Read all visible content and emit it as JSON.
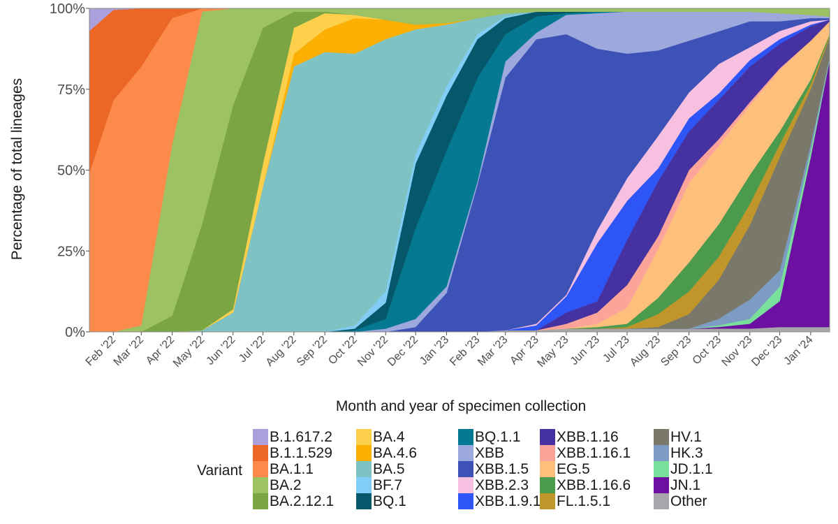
{
  "chart_data": {
    "type": "area",
    "stacked": true,
    "normalized_percent": true,
    "xlabel": "Month and year of specimen collection",
    "ylabel": "Percentage of total lineages",
    "ylim": [
      0,
      100
    ],
    "y_ticks": [
      "0%",
      "25%",
      "50%",
      "75%",
      "100%"
    ],
    "x_ticks": [
      {
        "date": "2022-02-01",
        "label": "Feb '22"
      },
      {
        "date": "2022-03-01",
        "label": "Mar '22"
      },
      {
        "date": "2022-04-01",
        "label": "Apr '22"
      },
      {
        "date": "2022-05-01",
        "label": "May '22"
      },
      {
        "date": "2022-06-01",
        "label": "Jun '22"
      },
      {
        "date": "2022-07-01",
        "label": "Jul '22"
      },
      {
        "date": "2022-08-01",
        "label": "Aug '22"
      },
      {
        "date": "2022-09-01",
        "label": "Sep '22"
      },
      {
        "date": "2022-10-01",
        "label": "Oct '22"
      },
      {
        "date": "2022-11-01",
        "label": "Nov '22"
      },
      {
        "date": "2022-12-01",
        "label": "Dec '22"
      },
      {
        "date": "2023-01-01",
        "label": "Jan '23"
      },
      {
        "date": "2023-02-01",
        "label": "Feb '23"
      },
      {
        "date": "2023-03-01",
        "label": "Mar '23"
      },
      {
        "date": "2023-04-01",
        "label": "Apr '23"
      },
      {
        "date": "2023-05-01",
        "label": "May '23"
      },
      {
        "date": "2023-06-01",
        "label": "Jun '23"
      },
      {
        "date": "2023-07-01",
        "label": "Jul '23"
      },
      {
        "date": "2023-08-01",
        "label": "Aug '23"
      },
      {
        "date": "2023-09-01",
        "label": "Sep '23"
      },
      {
        "date": "2023-10-01",
        "label": "Oct '23"
      },
      {
        "date": "2023-11-01",
        "label": "Nov '23"
      },
      {
        "date": "2023-12-01",
        "label": "Dec '23"
      },
      {
        "date": "2024-01-01",
        "label": "Jan '24"
      }
    ],
    "xlim": [
      "2022-01-08",
      "2024-01-20"
    ],
    "x": [
      "2022-01-08",
      "2022-02-01",
      "2022-03-01",
      "2022-04-01",
      "2022-05-01",
      "2022-06-01",
      "2022-07-01",
      "2022-08-01",
      "2022-09-01",
      "2022-10-01",
      "2022-11-01",
      "2022-12-01",
      "2023-01-01",
      "2023-02-01",
      "2023-03-01",
      "2023-04-01",
      "2023-05-01",
      "2023-06-01",
      "2023-07-01",
      "2023-08-01",
      "2023-09-01",
      "2023-10-01",
      "2023-11-01",
      "2023-12-01",
      "2024-01-01",
      "2024-01-20"
    ],
    "legend_title": "Variant",
    "legend_position": "bottom",
    "series": [
      {
        "name": "B.1.617.2",
        "color": "#ab9fdc",
        "values": [
          7,
          0.5,
          0,
          0,
          0,
          0,
          0,
          0,
          0,
          0,
          0,
          0,
          0,
          0,
          0,
          0,
          0,
          0,
          0,
          0,
          0,
          0,
          0,
          0,
          0,
          0
        ]
      },
      {
        "name": "B.1.1.529",
        "color": "#ec6726",
        "values": [
          44,
          28,
          18,
          3,
          0,
          0,
          0,
          0,
          0,
          0,
          0,
          0,
          0,
          0,
          0,
          0,
          0,
          0,
          0,
          0,
          0,
          0,
          0,
          0,
          0,
          0
        ]
      },
      {
        "name": "BA.1.1",
        "color": "#fc8a4a",
        "values": [
          49,
          71.5,
          80,
          39,
          1,
          0,
          0,
          0,
          0,
          0,
          0,
          0,
          0,
          0,
          0,
          0,
          0,
          0,
          0,
          0,
          0,
          0,
          0,
          0,
          0,
          0
        ]
      },
      {
        "name": "BA.2",
        "color": "#9cc264",
        "values": [
          0,
          0,
          2,
          53,
          66,
          30,
          6,
          1,
          1,
          2,
          3.5,
          5,
          4.5,
          3,
          1.5,
          1,
          1,
          1,
          1,
          1,
          1,
          1,
          1,
          1.5,
          2,
          2.5
        ]
      },
      {
        "name": "BA.2.12.1",
        "color": "#7aa542",
        "values": [
          0,
          0,
          0,
          5,
          33,
          63,
          42,
          5,
          0.5,
          0,
          0,
          0,
          0,
          0,
          0,
          0,
          0,
          0,
          0,
          0,
          0,
          0,
          0,
          0,
          0,
          0
        ]
      },
      {
        "name": "BA.4",
        "color": "#fdd04c",
        "values": [
          0,
          0,
          0,
          0,
          0,
          1,
          7,
          8,
          5,
          1,
          0,
          0,
          0,
          0,
          0,
          0,
          0,
          0,
          0,
          0,
          0,
          0,
          0,
          0,
          0,
          0
        ]
      },
      {
        "name": "BA.4.6",
        "color": "#fdb004",
        "values": [
          0,
          0,
          0,
          0,
          0,
          0,
          0,
          4,
          7,
          11,
          6,
          1.5,
          0.5,
          0,
          0,
          0,
          0,
          0,
          0,
          0,
          0,
          0,
          0,
          0,
          0,
          0
        ]
      },
      {
        "name": "BA.5",
        "color": "#7ec2c4",
        "values": [
          0,
          0,
          0,
          0,
          0.5,
          6,
          45,
          82,
          86.5,
          84,
          78,
          38.5,
          19,
          5,
          1,
          0,
          0,
          0,
          0,
          0,
          0,
          0,
          0,
          0,
          0,
          0
        ]
      },
      {
        "name": "BF.7",
        "color": "#82cdf5",
        "values": [
          0,
          0,
          0,
          0,
          0,
          0,
          0,
          0,
          0,
          1,
          3.5,
          3,
          3,
          1.5,
          0.5,
          0,
          0,
          0,
          0,
          0,
          0,
          0,
          0,
          0,
          0,
          0
        ]
      },
      {
        "name": "BQ.1",
        "color": "#04586a",
        "values": [
          0,
          0,
          0,
          0,
          0,
          0,
          0,
          0,
          0,
          0.5,
          5,
          20,
          17,
          12,
          5,
          1.5,
          0.5,
          0,
          0,
          0,
          0,
          0,
          0,
          0,
          0,
          0
        ]
      },
      {
        "name": "BQ.1.1",
        "color": "#057892",
        "values": [
          0,
          0,
          0,
          0,
          0,
          0,
          0,
          0,
          0,
          0.5,
          3,
          28,
          42,
          32,
          8.5,
          5,
          0.5,
          0.5,
          0,
          0,
          0,
          0,
          0,
          0,
          0,
          0
        ]
      },
      {
        "name": "XBB",
        "color": "#9da9dc",
        "values": [
          0,
          0,
          0,
          0,
          0,
          0,
          0,
          0,
          0,
          0,
          1,
          2.5,
          2,
          1,
          5,
          2,
          6,
          11,
          13,
          12,
          9,
          6,
          3,
          2.5,
          1,
          0.5
        ]
      },
      {
        "name": "XBB.1.5",
        "color": "#3d52b7",
        "values": [
          0,
          0,
          0,
          0,
          0,
          0,
          0,
          0,
          0,
          0,
          0,
          1.5,
          12,
          45.5,
          78.5,
          87.5,
          81,
          56.5,
          38.5,
          26.5,
          16,
          10,
          8,
          3,
          1,
          0.5
        ]
      },
      {
        "name": "XBB.2.3",
        "color": "#f8c0e0",
        "values": [
          0,
          0,
          0,
          0,
          0,
          0,
          0,
          0,
          0,
          0,
          0,
          0,
          0,
          0,
          0,
          0.5,
          0.5,
          4,
          7,
          10,
          8,
          9,
          4,
          2.5,
          1,
          0
        ]
      },
      {
        "name": "XBB.1.9.1",
        "color": "#2e55f5",
        "values": [
          0,
          0,
          0,
          0,
          0,
          0,
          0,
          0,
          0,
          0,
          0,
          0,
          0,
          0,
          0,
          1.5,
          5,
          18,
          12,
          4,
          4,
          2,
          2,
          1.5,
          0.5,
          0
        ]
      },
      {
        "name": "XBB.1.16",
        "color": "#4531a0",
        "values": [
          0,
          0,
          0,
          0,
          0,
          0,
          0,
          0,
          0,
          0,
          0,
          0,
          0,
          0,
          0,
          0,
          3.5,
          3.5,
          14,
          17,
          12,
          12,
          11,
          7.5,
          4.5,
          0.5
        ]
      },
      {
        "name": "XBB.1.16.1",
        "color": "#fca49a",
        "values": [
          0,
          0,
          0,
          0,
          0,
          0,
          0,
          0,
          0,
          0,
          0,
          0,
          0,
          0,
          0,
          0,
          1.5,
          3.5,
          7,
          4,
          4,
          2,
          1,
          0.5,
          0,
          0
        ]
      },
      {
        "name": "EG.5",
        "color": "#fcc07c",
        "values": [
          0,
          0,
          0,
          0,
          0,
          0,
          0,
          0,
          0,
          0,
          0,
          0,
          0,
          0,
          0,
          0,
          0,
          1,
          5,
          15,
          24.5,
          24,
          21.5,
          19,
          12,
          4
        ]
      },
      {
        "name": "XBB.1.16.6",
        "color": "#4c9a4c",
        "values": [
          0,
          0,
          0,
          0,
          0,
          0,
          0,
          0,
          0,
          0,
          0,
          0,
          0,
          0,
          0,
          0,
          0,
          0.5,
          1,
          5,
          9,
          10,
          9,
          4,
          1.5,
          0.5
        ]
      },
      {
        "name": "FL.1.5.1",
        "color": "#c0962a",
        "values": [
          0,
          0,
          0,
          0,
          0,
          0,
          0,
          0,
          0,
          0,
          0,
          0,
          0,
          0,
          0,
          0,
          0,
          0,
          0.5,
          4,
          7,
          7,
          6.5,
          4,
          1.5,
          0.5
        ]
      },
      {
        "name": "HV.1",
        "color": "#7a786a",
        "values": [
          0,
          0,
          0,
          0,
          0,
          0,
          0,
          0,
          0,
          0,
          0,
          0,
          0,
          0,
          0,
          0,
          0,
          0,
          0,
          0.5,
          4.5,
          12,
          23,
          35,
          17,
          6
        ]
      },
      {
        "name": "HK.3",
        "color": "#7d9cc3",
        "values": [
          0,
          0,
          0,
          0,
          0,
          0,
          0,
          0,
          0,
          0,
          0,
          0,
          0,
          0,
          0,
          0,
          0,
          0,
          0,
          0,
          0,
          2,
          6,
          5,
          2,
          0.5
        ]
      },
      {
        "name": "JD.1.1",
        "color": "#78e09a",
        "values": [
          0,
          0,
          0,
          0,
          0,
          0,
          0,
          0,
          0,
          0,
          0,
          0,
          0,
          0,
          0,
          0,
          0,
          0,
          0,
          0,
          0,
          0.5,
          1.5,
          4.5,
          2,
          0.5
        ]
      },
      {
        "name": "JN.1",
        "color": "#6b10a0",
        "values": [
          0,
          0,
          0,
          0,
          0,
          0,
          0,
          0,
          0,
          0,
          0,
          0,
          0,
          0,
          0,
          0,
          0,
          0,
          0,
          0,
          0,
          0.5,
          1.5,
          8,
          52.5,
          82.5
        ]
      },
      {
        "name": "Other",
        "color": "#a8a6ab",
        "values": [
          0,
          0,
          0,
          0,
          0,
          0,
          0,
          0,
          0,
          0,
          0,
          0,
          0,
          0,
          0.5,
          0.5,
          1,
          1,
          1,
          1,
          1,
          1,
          1,
          1.5,
          1.5,
          1.5
        ]
      }
    ]
  }
}
